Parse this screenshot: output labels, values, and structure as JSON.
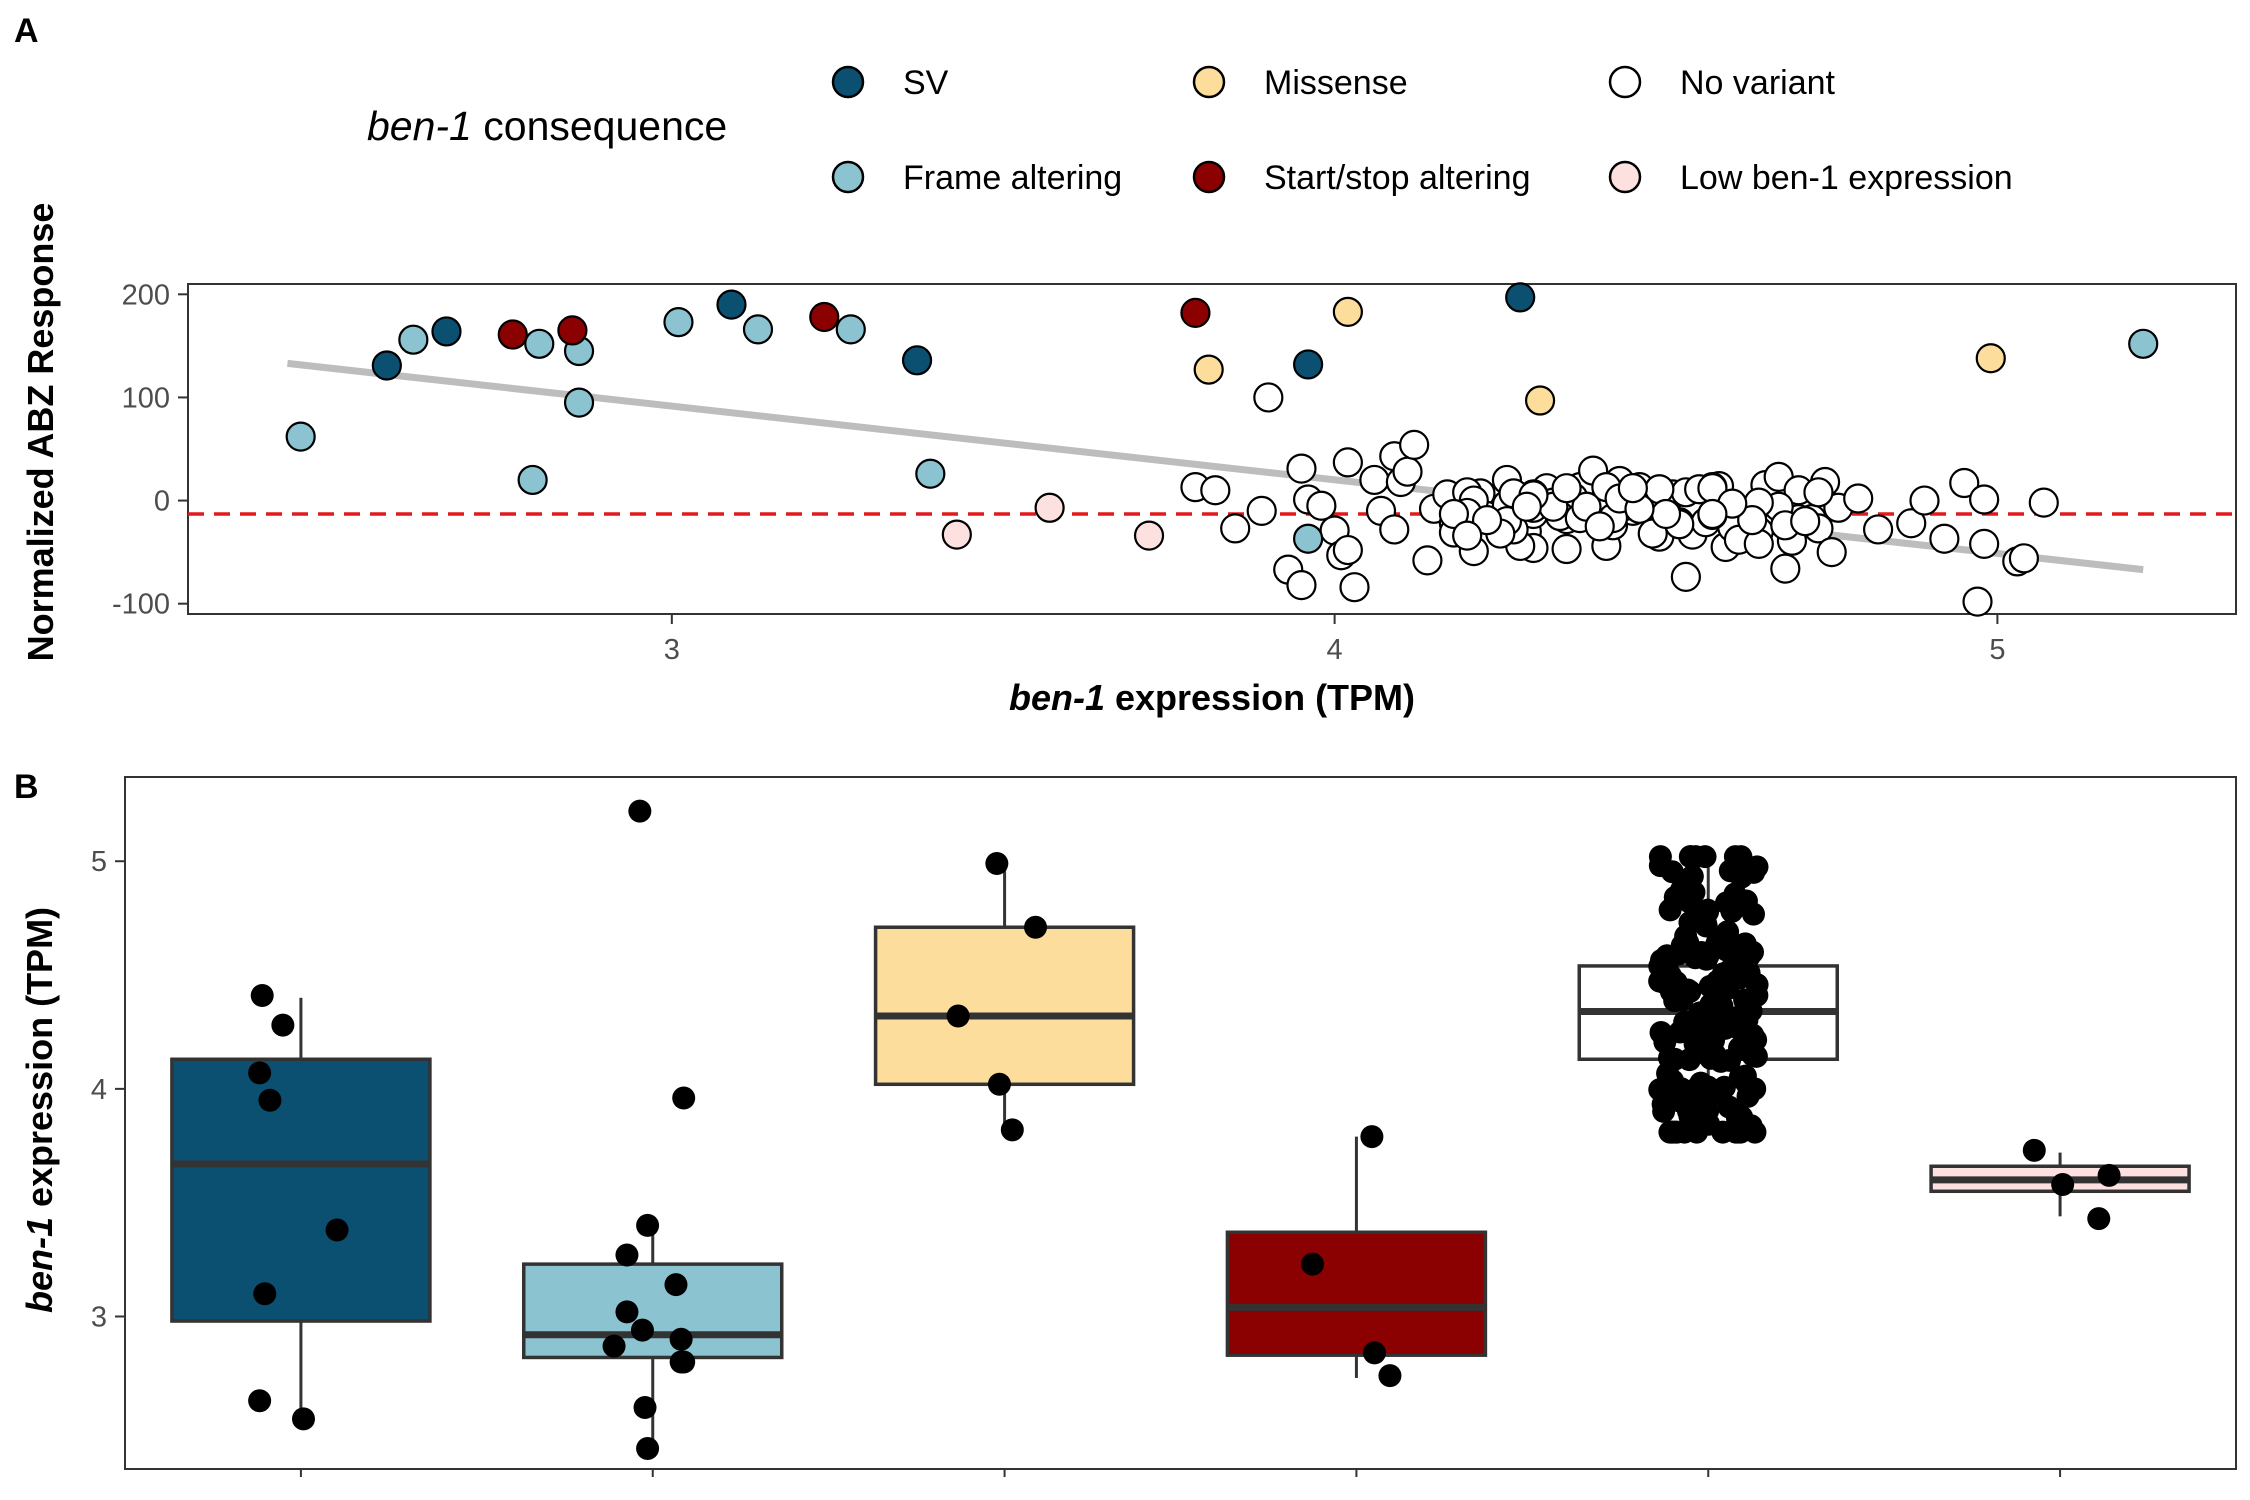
{
  "chart_data": [
    {
      "panel": "A",
      "type": "scatter",
      "xlabel_italic": "ben-1",
      "xlabel_rest": " expression (TPM)",
      "ylabel": "Normalized ABZ Response",
      "xlim": [
        2.27,
        5.36
      ],
      "ylim": [
        -110,
        210
      ],
      "xticks": [
        3,
        4,
        5
      ],
      "yticks": [
        -100,
        0,
        100,
        200
      ],
      "grid": false,
      "hline": -13,
      "hline_color": "#e31a1c",
      "trend_line": {
        "x": [
          2.42,
          5.22
        ],
        "y": [
          133,
          -67
        ],
        "color": "#bdbdbd"
      },
      "legend": {
        "position": "top",
        "title_italic": "ben-1",
        "title_rest": " consequence",
        "entries": [
          {
            "key": "sv",
            "label": "SV",
            "color": "#0b4f71"
          },
          {
            "key": "missense",
            "label": "Missense",
            "color": "#fcdd9c"
          },
          {
            "key": "none",
            "label": "No variant",
            "color": "#ffffff"
          },
          {
            "key": "frame",
            "label": "Frame altering",
            "color": "#8bc3d0"
          },
          {
            "key": "startstop",
            "label": "Start/stop altering",
            "color": "#8b0000"
          },
          {
            "key": "low",
            "label": "Low ben-1 expression",
            "color": "#fde0e0"
          }
        ]
      },
      "series": [
        {
          "key": "sv",
          "points": [
            [
              2.57,
              131
            ],
            [
              2.66,
              164
            ],
            [
              3.09,
              190
            ],
            [
              3.37,
              136
            ],
            [
              3.96,
              132
            ],
            [
              4.28,
              197
            ]
          ]
        },
        {
          "key": "frame",
          "points": [
            [
              2.44,
              62
            ],
            [
              2.61,
              156
            ],
            [
              2.79,
              20
            ],
            [
              2.8,
              152
            ],
            [
              2.86,
              145
            ],
            [
              2.86,
              95
            ],
            [
              3.01,
              173
            ],
            [
              3.13,
              166
            ],
            [
              3.27,
              166
            ],
            [
              3.39,
              26
            ],
            [
              3.96,
              -37
            ],
            [
              5.22,
              152
            ]
          ]
        },
        {
          "key": "startstop",
          "points": [
            [
              2.76,
              161
            ],
            [
              2.85,
              165
            ],
            [
              3.23,
              178
            ],
            [
              3.79,
              182
            ]
          ]
        },
        {
          "key": "missense",
          "points": [
            [
              3.81,
              127
            ],
            [
              4.02,
              183
            ],
            [
              4.31,
              97
            ],
            [
              4.99,
              138
            ]
          ]
        },
        {
          "key": "low",
          "points": [
            [
              3.43,
              -33
            ],
            [
              3.57,
              -7
            ],
            [
              3.72,
              -34
            ]
          ]
        },
        {
          "key": "none",
          "points": [
            [
              3.79,
              13
            ],
            [
              3.82,
              10
            ],
            [
              3.85,
              -27
            ],
            [
              3.89,
              -10
            ],
            [
              3.9,
              100
            ],
            [
              3.93,
              -67
            ],
            [
              3.95,
              -82
            ],
            [
              3.95,
              31
            ],
            [
              3.96,
              1
            ],
            [
              3.98,
              -5
            ],
            [
              4.0,
              -29
            ],
            [
              4.01,
              -53
            ],
            [
              4.02,
              -48
            ],
            [
              4.02,
              37
            ],
            [
              4.03,
              -84
            ],
            [
              4.06,
              20
            ],
            [
              4.07,
              -10
            ],
            [
              4.09,
              -28
            ],
            [
              4.09,
              43
            ],
            [
              4.1,
              18
            ],
            [
              4.11,
              28
            ],
            [
              4.12,
              54
            ],
            [
              4.14,
              -58
            ],
            [
              4.15,
              -8
            ],
            [
              4.17,
              6
            ],
            [
              4.18,
              -22
            ],
            [
              4.2,
              -20
            ],
            [
              4.21,
              -49
            ],
            [
              4.22,
              7
            ],
            [
              4.24,
              -17
            ],
            [
              4.26,
              20
            ],
            [
              4.27,
              -4
            ],
            [
              4.28,
              -38
            ],
            [
              4.29,
              -30
            ],
            [
              4.3,
              -13
            ],
            [
              4.3,
              -46
            ],
            [
              4.32,
              12
            ],
            [
              4.33,
              -2
            ],
            [
              4.35,
              -18
            ],
            [
              4.35,
              -47
            ],
            [
              4.37,
              13
            ],
            [
              4.39,
              29
            ],
            [
              4.4,
              -8
            ],
            [
              4.41,
              -44
            ],
            [
              4.42,
              -23
            ],
            [
              4.44,
              8
            ],
            [
              4.45,
              -10
            ],
            [
              4.46,
              13
            ],
            [
              4.48,
              -5
            ],
            [
              4.49,
              -35
            ],
            [
              4.51,
              6
            ],
            [
              4.52,
              -21
            ],
            [
              4.53,
              -74
            ],
            [
              4.54,
              -33
            ],
            [
              4.56,
              -21
            ],
            [
              4.58,
              14
            ],
            [
              4.59,
              -45
            ],
            [
              4.6,
              -7
            ],
            [
              4.62,
              -18
            ],
            [
              4.64,
              -30
            ],
            [
              4.65,
              15
            ],
            [
              4.67,
              23
            ],
            [
              4.68,
              -66
            ],
            [
              4.69,
              -39
            ],
            [
              4.7,
              10
            ],
            [
              4.72,
              -18
            ],
            [
              4.73,
              -27
            ],
            [
              4.74,
              18
            ],
            [
              4.75,
              -50
            ],
            [
              4.76,
              -7
            ],
            [
              4.79,
              2
            ],
            [
              4.82,
              -28
            ],
            [
              4.87,
              -22
            ],
            [
              4.89,
              0
            ],
            [
              4.92,
              -37
            ],
            [
              4.95,
              17
            ],
            [
              4.97,
              -98
            ],
            [
              4.98,
              -42
            ],
            [
              4.98,
              1
            ],
            [
              5.03,
              -59
            ],
            [
              5.04,
              -56
            ],
            [
              5.07,
              -2
            ],
            [
              4.26,
              -30
            ],
            [
              4.47,
              3
            ],
            [
              4.18,
              -31
            ],
            [
              4.44,
              -5
            ],
            [
              4.28,
              -44
            ],
            [
              4.38,
              -6
            ],
            [
              4.2,
              8
            ],
            [
              4.7,
              -18
            ],
            [
              4.4,
              -12
            ],
            [
              4.23,
              -15
            ],
            [
              4.59,
              -7
            ],
            [
              4.6,
              -26
            ],
            [
              4.36,
              3
            ],
            [
              4.36,
              -10
            ],
            [
              4.53,
              8
            ],
            [
              4.42,
              -24
            ],
            [
              4.57,
              13
            ],
            [
              4.52,
              -23
            ],
            [
              4.27,
              -28
            ],
            [
              4.43,
              19
            ],
            [
              4.3,
              6
            ],
            [
              4.63,
              -14
            ],
            [
              4.67,
              -6
            ],
            [
              4.61,
              -38
            ],
            [
              4.42,
              -17
            ],
            [
              4.55,
              11
            ],
            [
              4.26,
              -4
            ],
            [
              4.21,
              0
            ],
            [
              4.47,
              0
            ],
            [
              4.41,
              13
            ],
            [
              4.48,
              1
            ],
            [
              4.34,
              -15
            ],
            [
              4.64,
              -42
            ],
            [
              4.68,
              -24
            ],
            [
              4.64,
              -2
            ],
            [
              4.26,
              -20
            ],
            [
              4.3,
              -7
            ],
            [
              4.37,
              -17
            ],
            [
              4.49,
              11
            ],
            [
              4.73,
              8
            ],
            [
              4.48,
              -32
            ],
            [
              4.43,
              2
            ],
            [
              4.38,
              -6
            ],
            [
              4.33,
              -6
            ],
            [
              4.5,
              -13
            ],
            [
              4.2,
              -12
            ],
            [
              4.27,
              7
            ],
            [
              4.3,
              5
            ],
            [
              4.4,
              -25
            ],
            [
              4.57,
              -14
            ],
            [
              4.63,
              -19
            ],
            [
              4.29,
              -6
            ],
            [
              4.46,
              -8
            ],
            [
              4.58,
              -4
            ],
            [
              4.57,
              12
            ],
            [
              4.25,
              -32
            ],
            [
              4.18,
              -13
            ],
            [
              4.6,
              -3
            ],
            [
              4.35,
              12
            ],
            [
              4.57,
              -13
            ],
            [
              4.45,
              12
            ],
            [
              4.71,
              -20
            ],
            [
              4.23,
              -19
            ],
            [
              4.2,
              -34
            ]
          ]
        }
      ]
    },
    {
      "panel": "B",
      "type": "box",
      "ylabel_italic": "ben-1",
      "ylabel_rest": " expression (TPM)",
      "ylim": [
        2.33,
        5.37
      ],
      "yticks": [
        3,
        4,
        5
      ],
      "grid": false,
      "boxes": [
        {
          "key": "sv",
          "q1": 2.98,
          "median": 3.67,
          "q3": 4.13,
          "whisker_low": 2.55,
          "whisker_high": 4.4,
          "points": [
            [
              -0.15,
              4.41
            ],
            [
              -0.07,
              4.28
            ],
            [
              -0.16,
              4.07
            ],
            [
              -0.12,
              3.95
            ],
            [
              0.14,
              3.38
            ],
            [
              -0.14,
              3.1
            ],
            [
              -0.16,
              2.63
            ],
            [
              0.01,
              2.55
            ]
          ]
        },
        {
          "key": "frame",
          "q1": 2.82,
          "median": 2.92,
          "q3": 3.23,
          "whisker_low": 2.44,
          "whisker_high": 3.4,
          "points": [
            [
              -0.05,
              5.22
            ],
            [
              0.12,
              3.96
            ],
            [
              -0.02,
              3.4
            ],
            [
              -0.1,
              3.27
            ],
            [
              0.09,
              3.14
            ],
            [
              -0.1,
              3.02
            ],
            [
              -0.04,
              2.94
            ],
            [
              0.11,
              2.9
            ],
            [
              -0.15,
              2.87
            ],
            [
              0.12,
              2.8
            ],
            [
              0.11,
              2.8
            ],
            [
              -0.03,
              2.6
            ],
            [
              -0.02,
              2.42
            ]
          ]
        },
        {
          "key": "missense",
          "q1": 4.02,
          "median": 4.32,
          "q3": 4.71,
          "whisker_low": 3.82,
          "whisker_high": 4.99,
          "points": [
            [
              -0.03,
              4.99
            ],
            [
              0.12,
              4.71
            ],
            [
              -0.18,
              4.32
            ],
            [
              -0.02,
              4.02
            ],
            [
              0.03,
              3.82
            ]
          ]
        },
        {
          "key": "startstop",
          "q1": 2.83,
          "median": 3.04,
          "q3": 3.37,
          "whisker_low": 2.73,
          "whisker_high": 3.79,
          "points": [
            [
              0.06,
              3.79
            ],
            [
              -0.17,
              3.23
            ],
            [
              0.07,
              2.84
            ],
            [
              0.13,
              2.74
            ]
          ]
        },
        {
          "key": "none",
          "q1": 4.13,
          "median": 4.34,
          "q3": 4.54,
          "whisker_low": 3.81,
          "whisker_high": 5.02,
          "cloud": {
            "n": 180,
            "xspread": 0.19,
            "ymin": 3.81,
            "ymax": 5.02,
            "center": 4.34
          }
        },
        {
          "key": "low",
          "q1": 3.55,
          "median": 3.6,
          "q3": 3.66,
          "whisker_low": 3.44,
          "whisker_high": 3.72,
          "points": [
            [
              -0.1,
              3.73
            ],
            [
              0.19,
              3.62
            ],
            [
              0.01,
              3.58
            ],
            [
              0.15,
              3.43
            ]
          ]
        }
      ]
    }
  ]
}
